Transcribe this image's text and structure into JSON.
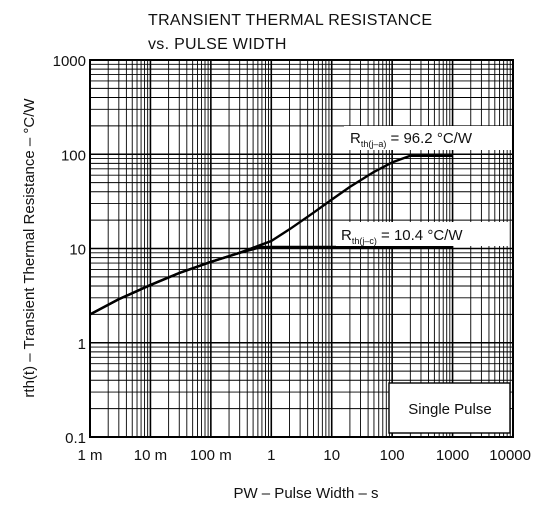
{
  "chart_data": {
    "type": "line",
    "title": "TRANSIENT THERMAL RESISTANCE",
    "subtitle": "vs. PULSE WIDTH",
    "xlabel": "PW – Pulse Width – s",
    "ylabel": "rth(t) – Transient Thermal Resistance – °C/W",
    "x_scale": "log",
    "y_scale": "log",
    "xlim": [
      0.001,
      10000
    ],
    "ylim": [
      0.1,
      1000
    ],
    "x_ticks": [
      {
        "value": 0.001,
        "label": "1 m"
      },
      {
        "value": 0.01,
        "label": "10 m"
      },
      {
        "value": 0.1,
        "label": "100 m"
      },
      {
        "value": 1,
        "label": "1"
      },
      {
        "value": 10,
        "label": "10"
      },
      {
        "value": 100,
        "label": "100"
      },
      {
        "value": 1000,
        "label": "1000"
      },
      {
        "value": 10000,
        "label": "10000"
      }
    ],
    "y_ticks": [
      {
        "value": 0.1,
        "label": "0.1"
      },
      {
        "value": 1,
        "label": "1"
      },
      {
        "value": 10,
        "label": "10"
      },
      {
        "value": 100,
        "label": "100"
      },
      {
        "value": 1000,
        "label": "1000"
      }
    ],
    "grid": true,
    "series": [
      {
        "x": [
          0.001,
          0.003,
          0.01,
          0.03,
          0.1,
          0.3,
          1,
          2,
          5,
          10,
          20,
          50,
          100,
          200,
          300,
          1000
        ],
        "y": [
          2.0,
          2.9,
          4.1,
          5.5,
          7.2,
          9.0,
          12.0,
          16.0,
          24.0,
          33.0,
          45.0,
          65.0,
          82.0,
          96.2,
          96.2,
          96.2
        ]
      },
      {
        "x": [
          0.001,
          0.003,
          0.01,
          0.03,
          0.1,
          0.3,
          0.7,
          1,
          2,
          10,
          100,
          1000
        ],
        "y": [
          2.0,
          2.9,
          4.1,
          5.5,
          7.2,
          9.0,
          10.4,
          10.4,
          10.4,
          10.4,
          10.4,
          10.4
        ]
      }
    ],
    "annotations": {
      "rth_ja": {
        "symbol": "R",
        "subscript": "th(j–a)",
        "text": " = 96.2 °C/W"
      },
      "rth_jc": {
        "symbol": "R",
        "subscript": "th(j–c)",
        "text": " = 10.4 °C/W"
      },
      "pulse_note": "Single Pulse"
    }
  }
}
